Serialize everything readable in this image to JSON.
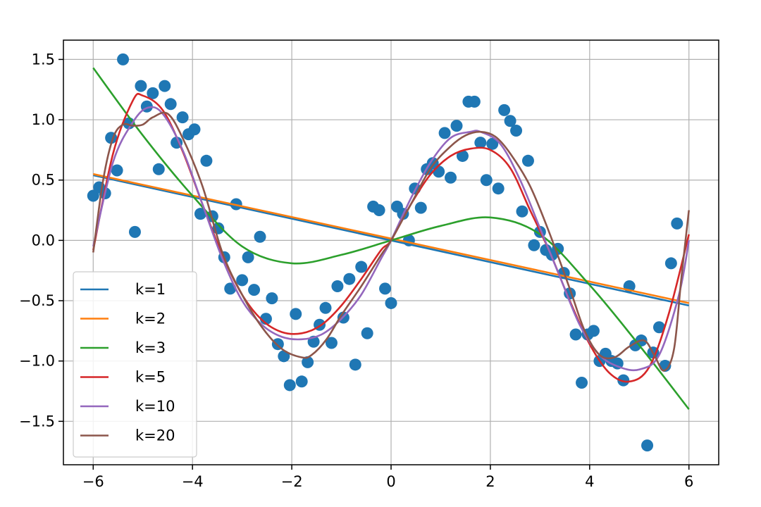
{
  "chart_data": {
    "type": "scatter",
    "title": "",
    "xlabel": "",
    "ylabel": "",
    "xlim": [
      -6.6,
      6.6
    ],
    "ylim": [
      -1.86,
      1.66
    ],
    "grid": true,
    "legend_placement": "lower-left",
    "x_ticks": [
      -6,
      -4,
      -2,
      0,
      2,
      4,
      6
    ],
    "x_tick_labels": [
      "−6",
      "−4",
      "−2",
      "0",
      "2",
      "4",
      "6"
    ],
    "y_ticks": [
      -1.5,
      -1.0,
      -0.5,
      0.0,
      0.5,
      1.0,
      1.5
    ],
    "y_tick_labels": [
      "−1.5",
      "−1.0",
      "−0.5",
      "0.0",
      "0.5",
      "1.0",
      "1.5"
    ],
    "scatter": {
      "color": "#1f77b4",
      "points": [
        [
          -6.0,
          0.37
        ],
        [
          -5.88,
          0.44
        ],
        [
          -5.76,
          0.39
        ],
        [
          -5.64,
          0.85
        ],
        [
          -5.52,
          0.58
        ],
        [
          -5.4,
          1.5
        ],
        [
          -5.28,
          0.97
        ],
        [
          -5.16,
          0.07
        ],
        [
          -5.04,
          1.28
        ],
        [
          -4.92,
          1.11
        ],
        [
          -4.8,
          1.22
        ],
        [
          -4.68,
          0.59
        ],
        [
          -4.56,
          1.28
        ],
        [
          -4.44,
          1.13
        ],
        [
          -4.32,
          0.81
        ],
        [
          -4.2,
          1.02
        ],
        [
          -4.08,
          0.88
        ],
        [
          -3.96,
          0.92
        ],
        [
          -3.84,
          0.22
        ],
        [
          -3.72,
          0.66
        ],
        [
          -3.6,
          0.2
        ],
        [
          -3.48,
          0.1
        ],
        [
          -3.36,
          -0.14
        ],
        [
          -3.24,
          -0.4
        ],
        [
          -3.12,
          0.3
        ],
        [
          -3.0,
          -0.33
        ],
        [
          -2.88,
          -0.14
        ],
        [
          -2.76,
          -0.41
        ],
        [
          -2.64,
          0.03
        ],
        [
          -2.52,
          -0.65
        ],
        [
          -2.4,
          -0.48
        ],
        [
          -2.28,
          -0.86
        ],
        [
          -2.16,
          -0.96
        ],
        [
          -2.04,
          -1.2
        ],
        [
          -1.92,
          -0.61
        ],
        [
          -1.8,
          -1.17
        ],
        [
          -1.68,
          -1.01
        ],
        [
          -1.56,
          -0.84
        ],
        [
          -1.44,
          -0.7
        ],
        [
          -1.32,
          -0.56
        ],
        [
          -1.2,
          -0.85
        ],
        [
          -1.08,
          -0.38
        ],
        [
          -0.96,
          -0.64
        ],
        [
          -0.84,
          -0.32
        ],
        [
          -0.72,
          -1.03
        ],
        [
          -0.6,
          -0.22
        ],
        [
          -0.48,
          -0.77
        ],
        [
          -0.36,
          0.28
        ],
        [
          -0.24,
          0.25
        ],
        [
          -0.12,
          -0.4
        ],
        [
          0.0,
          -0.52
        ],
        [
          0.12,
          0.28
        ],
        [
          0.24,
          0.22
        ],
        [
          0.36,
          0.0
        ],
        [
          0.48,
          0.43
        ],
        [
          0.6,
          0.27
        ],
        [
          0.72,
          0.59
        ],
        [
          0.84,
          0.64
        ],
        [
          0.96,
          0.57
        ],
        [
          1.08,
          0.89
        ],
        [
          1.2,
          0.52
        ],
        [
          1.32,
          0.95
        ],
        [
          1.44,
          0.7
        ],
        [
          1.56,
          1.15
        ],
        [
          1.68,
          1.15
        ],
        [
          1.8,
          0.81
        ],
        [
          1.92,
          0.5
        ],
        [
          2.04,
          0.8
        ],
        [
          2.16,
          0.43
        ],
        [
          2.28,
          1.08
        ],
        [
          2.4,
          0.99
        ],
        [
          2.52,
          0.91
        ],
        [
          2.64,
          0.24
        ],
        [
          2.76,
          0.66
        ],
        [
          2.88,
          -0.04
        ],
        [
          3.0,
          0.07
        ],
        [
          3.12,
          -0.08
        ],
        [
          3.24,
          -0.12
        ],
        [
          3.36,
          -0.07
        ],
        [
          3.48,
          -0.27
        ],
        [
          3.6,
          -0.44
        ],
        [
          3.72,
          -0.78
        ],
        [
          3.84,
          -1.18
        ],
        [
          3.96,
          -0.78
        ],
        [
          4.08,
          -0.75
        ],
        [
          4.2,
          -1.0
        ],
        [
          4.32,
          -0.94
        ],
        [
          4.44,
          -1.0
        ],
        [
          4.56,
          -1.02
        ],
        [
          4.68,
          -1.16
        ],
        [
          4.8,
          -0.38
        ],
        [
          4.92,
          -0.87
        ],
        [
          5.04,
          -0.83
        ],
        [
          5.16,
          -1.7
        ],
        [
          5.28,
          -0.93
        ],
        [
          5.4,
          -0.72
        ],
        [
          5.52,
          -1.04
        ],
        [
          5.64,
          -0.19
        ],
        [
          5.76,
          0.14
        ]
      ]
    },
    "series": [
      {
        "name": "k=1",
        "color": "#1f77b4",
        "x": [
          -6,
          6
        ],
        "y": [
          0.54,
          -0.54
        ]
      },
      {
        "name": "k=2",
        "color": "#ff7f0e",
        "x": [
          -6,
          6
        ],
        "y": [
          0.55,
          -0.52
        ]
      },
      {
        "name": "k=3",
        "color": "#2ca02c",
        "x": [
          -6,
          -5,
          -4,
          -3,
          -2,
          -1,
          0,
          1,
          2,
          3,
          4,
          5,
          6
        ],
        "y": [
          1.43,
          0.87,
          0.37,
          -0.05,
          -0.19,
          -0.12,
          0.0,
          0.12,
          0.19,
          0.05,
          -0.37,
          -0.87,
          -1.4
        ]
      },
      {
        "name": "k=5",
        "color": "#d62728",
        "x": [
          -6,
          -5.6,
          -5.2,
          -5,
          -4.6,
          -4.2,
          -3.8,
          -3.4,
          -3,
          -2.6,
          -2.2,
          -1.8,
          -1.4,
          -1,
          -0.6,
          -0.2,
          0,
          0.4,
          0.8,
          1.2,
          1.6,
          2,
          2.4,
          2.8,
          3.2,
          3.6,
          4,
          4.4,
          4.8,
          5.2,
          5.6,
          6
        ],
        "y": [
          -0.08,
          0.72,
          1.16,
          1.2,
          1.08,
          0.74,
          0.3,
          -0.12,
          -0.45,
          -0.66,
          -0.76,
          -0.77,
          -0.7,
          -0.54,
          -0.32,
          -0.08,
          0.0,
          0.3,
          0.55,
          0.7,
          0.76,
          0.75,
          0.6,
          0.25,
          -0.1,
          -0.5,
          -0.86,
          -1.1,
          -1.17,
          -1.05,
          -0.6,
          0.05
        ]
      },
      {
        "name": "k=10",
        "color": "#9467bd",
        "x": [
          -6,
          -5.6,
          -5.2,
          -4.9,
          -4.6,
          -4.2,
          -3.8,
          -3.4,
          -3,
          -2.6,
          -2.2,
          -1.8,
          -1.4,
          -1,
          -0.6,
          -0.2,
          0,
          0.4,
          0.8,
          1.2,
          1.6,
          1.8,
          2.2,
          2.6,
          3,
          3.4,
          3.8,
          4.2,
          4.6,
          5,
          5.4,
          5.8,
          6
        ],
        "y": [
          -0.05,
          0.65,
          0.98,
          1.1,
          1.05,
          0.75,
          0.3,
          -0.15,
          -0.5,
          -0.7,
          -0.8,
          -0.82,
          -0.78,
          -0.65,
          -0.45,
          -0.15,
          0.0,
          0.35,
          0.65,
          0.85,
          0.9,
          0.9,
          0.8,
          0.5,
          0.1,
          -0.3,
          -0.7,
          -0.95,
          -1.05,
          -1.07,
          -0.95,
          -0.45,
          0.0
        ]
      },
      {
        "name": "k=20",
        "color": "#8c564b",
        "x": [
          -6,
          -5.8,
          -5.6,
          -5.4,
          -5.2,
          -5,
          -4.8,
          -4.5,
          -4.2,
          -3.8,
          -3.4,
          -3,
          -2.6,
          -2.2,
          -1.8,
          -1.6,
          -1.3,
          -1,
          -0.6,
          -0.2,
          0,
          0.4,
          0.8,
          1.2,
          1.5,
          1.8,
          2.1,
          2.4,
          2.8,
          3.2,
          3.6,
          3.9,
          4.2,
          4.5,
          4.8,
          5.1,
          5.3,
          5.5,
          5.7,
          5.85,
          6
        ],
        "y": [
          -0.1,
          0.5,
          0.85,
          0.96,
          0.95,
          0.96,
          1.02,
          1.05,
          0.85,
          0.45,
          -0.1,
          -0.45,
          -0.72,
          -0.9,
          -0.97,
          -0.95,
          -0.82,
          -0.62,
          -0.38,
          -0.12,
          0.0,
          0.3,
          0.6,
          0.78,
          0.87,
          0.9,
          0.86,
          0.72,
          0.45,
          0.05,
          -0.4,
          -0.75,
          -0.95,
          -0.97,
          -0.88,
          -0.83,
          -0.95,
          -1.08,
          -0.9,
          -0.3,
          0.25
        ]
      }
    ]
  }
}
